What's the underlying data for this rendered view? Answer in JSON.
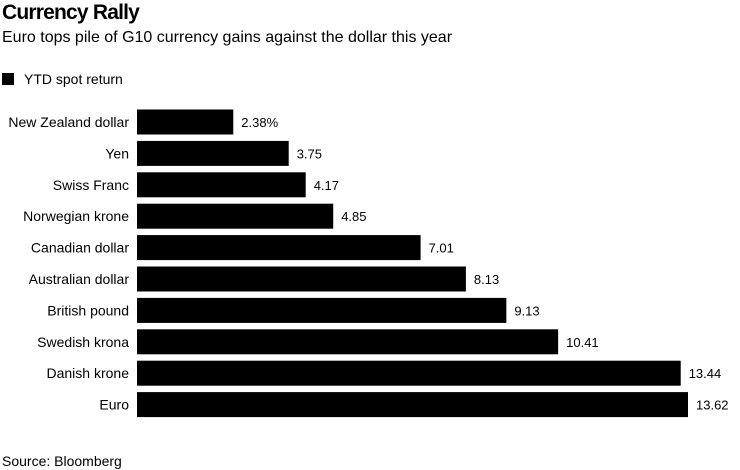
{
  "header": {
    "title": "Currency Rally",
    "subtitle": "Euro tops pile of G10 currency gains against the dollar this year"
  },
  "footer": {
    "source": "Source: Bloomberg"
  },
  "colors": {
    "bar": "#000000",
    "text": "#000000",
    "background": "#ffffff"
  },
  "chart_data": {
    "type": "bar",
    "orientation": "horizontal",
    "categories": [
      "New Zealand dollar",
      "Yen",
      "Swiss Franc",
      "Norwegian krone",
      "Canadian dollar",
      "Australian dollar",
      "British pound",
      "Swedish krona",
      "Danish krone",
      "Euro"
    ],
    "series": [
      {
        "name": "YTD spot return",
        "values": [
          2.38,
          3.75,
          4.17,
          4.85,
          7.01,
          8.13,
          9.13,
          10.41,
          13.44,
          13.62
        ],
        "data_labels": [
          "2.38%",
          "3.75",
          "4.17",
          "4.85",
          "7.01",
          "8.13",
          "9.13",
          "10.41",
          "13.44",
          "13.62"
        ]
      }
    ],
    "title": "Currency Rally",
    "subtitle": "Euro tops pile of G10 currency gains against the dollar this year",
    "xlim": [
      0,
      13.62
    ],
    "grid": false,
    "legend_position": "top-left"
  }
}
